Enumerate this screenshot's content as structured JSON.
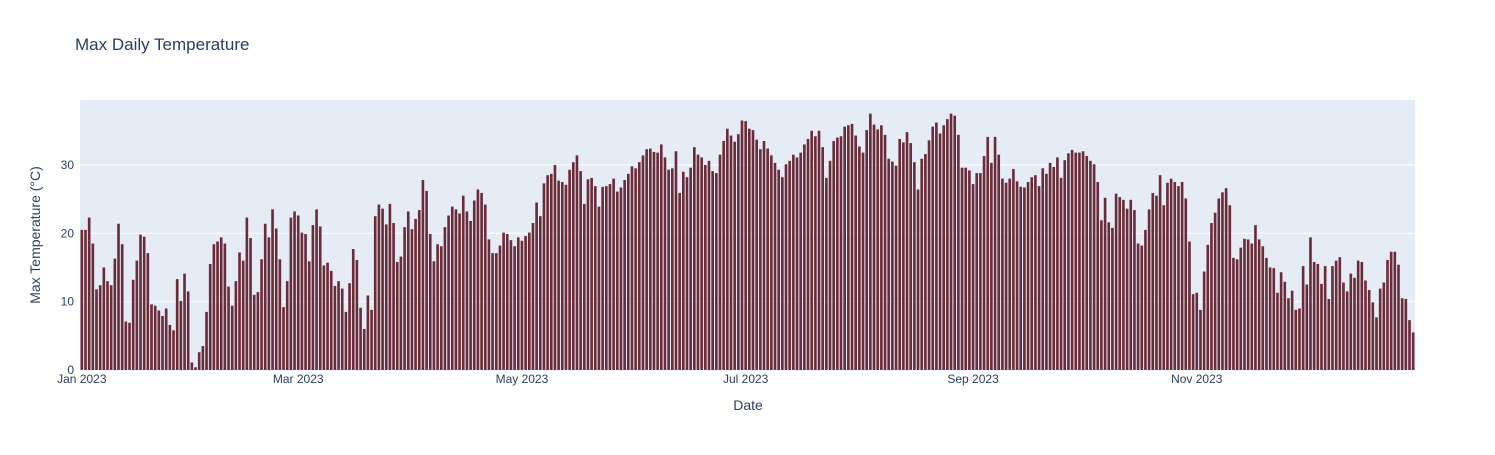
{
  "chart_data": {
    "type": "bar",
    "title": "Max Daily Temperature",
    "xlabel": "Date",
    "ylabel": "Max Temperature (°C)",
    "x_start": "2023-01-01",
    "x_tick_labels": [
      "Jan 2023",
      "Mar 2023",
      "May 2023",
      "Jul 2023",
      "Sep 2023",
      "Nov 2023"
    ],
    "x_tick_dates": [
      "2023-01-01",
      "2023-03-01",
      "2023-05-01",
      "2023-07-01",
      "2023-09-01",
      "2023-11-01"
    ],
    "y_ticks": [
      0,
      10,
      20,
      30
    ],
    "ylim": [
      0,
      39.5
    ],
    "grid": true,
    "colors": {
      "bar": "#6b2c3a",
      "plot_bg": "#e5ecf6",
      "grid": "#ffffff",
      "title": "#2a3f5f",
      "axis_text": "#2a3f5f"
    },
    "values": [
      20.5,
      20.5,
      22.3,
      18.5,
      11.8,
      12.4,
      15.0,
      13.0,
      12.4,
      16.3,
      21.4,
      18.4,
      7.1,
      6.9,
      13.2,
      16.0,
      19.8,
      19.5,
      17.1,
      9.6,
      9.4,
      8.7,
      7.9,
      9.0,
      6.6,
      5.8,
      13.3,
      10.1,
      14.1,
      11.5,
      1.1,
      0.4,
      2.6,
      3.5,
      8.5,
      15.5,
      18.4,
      18.8,
      19.4,
      18.5,
      12.2,
      9.4,
      13.0,
      17.2,
      16.0,
      22.3,
      19.3,
      11.0,
      11.4,
      16.2,
      21.4,
      19.4,
      23.5,
      20.7,
      16.2,
      9.2,
      13.0,
      22.3,
      23.2,
      22.6,
      20.1,
      19.9,
      15.9,
      21.2,
      23.5,
      21.0,
      15.3,
      15.7,
      14.5,
      12.3,
      13.0,
      11.9,
      8.5,
      12.7,
      17.7,
      16.1,
      9.1,
      6.0,
      10.9,
      8.8,
      22.5,
      24.2,
      23.6,
      21.3,
      24.3,
      21.5,
      15.8,
      16.6,
      20.9,
      23.2,
      20.6,
      22.1,
      23.4,
      27.8,
      26.2,
      19.9,
      15.9,
      18.4,
      18.1,
      20.9,
      22.6,
      23.9,
      23.5,
      22.9,
      25.5,
      23.2,
      21.8,
      24.8,
      26.4,
      25.9,
      24.2,
      19.1,
      17.1,
      17.1,
      18.2,
      20.1,
      19.9,
      19.0,
      18.1,
      19.4,
      18.9,
      19.6,
      20.1,
      21.5,
      24.5,
      22.5,
      27.3,
      28.5,
      28.7,
      30.0,
      27.7,
      27.5,
      27.1,
      29.3,
      30.4,
      31.4,
      29.1,
      24.3,
      27.9,
      28.1,
      26.9,
      23.9,
      26.8,
      26.9,
      27.2,
      28.0,
      26.1,
      26.7,
      27.8,
      28.7,
      29.8,
      29.5,
      30.4,
      31.4,
      32.3,
      32.4,
      31.9,
      31.8,
      33.0,
      31.1,
      29.3,
      29.5,
      32.0,
      25.9,
      29.0,
      28.2,
      29.6,
      32.6,
      31.5,
      31.1,
      30.0,
      30.6,
      29.1,
      28.8,
      31.5,
      33.5,
      35.3,
      34.3,
      33.4,
      34.5,
      36.5,
      36.4,
      35.3,
      35.1,
      33.7,
      32.3,
      33.5,
      32.4,
      31.4,
      30.3,
      29.3,
      28.2,
      30.1,
      30.6,
      31.5,
      31.1,
      31.8,
      33.0,
      33.8,
      35.0,
      34.2,
      35.0,
      32.6,
      28.1,
      30.6,
      33.5,
      34.0,
      34.2,
      35.6,
      35.8,
      36.0,
      34.3,
      32.7,
      31.8,
      35.1,
      37.5,
      35.9,
      35.2,
      35.8,
      34.4,
      30.9,
      30.5,
      29.9,
      33.8,
      33.3,
      34.8,
      33.2,
      30.4,
      26.4,
      30.9,
      31.6,
      33.6,
      35.6,
      36.2,
      34.6,
      35.8,
      36.7,
      37.5,
      37.2,
      34.4,
      29.6,
      29.6,
      29.2,
      27.2,
      28.8,
      28.8,
      31.3,
      34.1,
      30.3,
      34.1,
      31.5,
      28.0,
      27.4,
      28.0,
      29.4,
      27.6,
      26.8,
      26.7,
      27.5,
      28.2,
      28.5,
      26.9,
      29.5,
      28.7,
      30.3,
      29.7,
      31.1,
      28.1,
      30.7,
      31.7,
      32.2,
      31.8,
      31.8,
      32.0,
      31.3,
      30.6,
      30.1,
      27.5,
      21.9,
      25.2,
      21.6,
      20.8,
      25.8,
      25.3,
      24.9,
      23.6,
      24.9,
      23.4,
      18.5,
      18.2,
      20.5,
      23.5,
      25.9,
      25.5,
      28.5,
      24.1,
      27.4,
      28.0,
      27.5,
      26.9,
      27.5,
      25.1,
      18.8,
      11.1,
      11.3,
      8.8,
      14.4,
      18.3,
      21.5,
      23.0,
      25.1,
      26.0,
      26.6,
      24.1,
      16.4,
      16.2,
      17.9,
      19.2,
      19.1,
      18.5,
      21.2,
      19.1,
      18.1,
      16.4,
      15.0,
      14.9,
      11.3,
      14.3,
      12.9,
      10.5,
      11.6,
      8.8,
      9.0,
      15.2,
      12.5,
      19.4,
      15.8,
      15.5,
      12.6,
      15.2,
      10.4,
      15.2,
      16.0,
      16.5,
      12.8,
      11.5,
      14.1,
      13.5,
      16.0,
      15.8,
      13.1,
      11.7,
      9.9,
      7.7,
      11.9,
      12.8,
      16.1,
      17.3,
      17.3,
      15.4,
      10.5,
      10.4,
      7.3,
      5.5
    ]
  }
}
